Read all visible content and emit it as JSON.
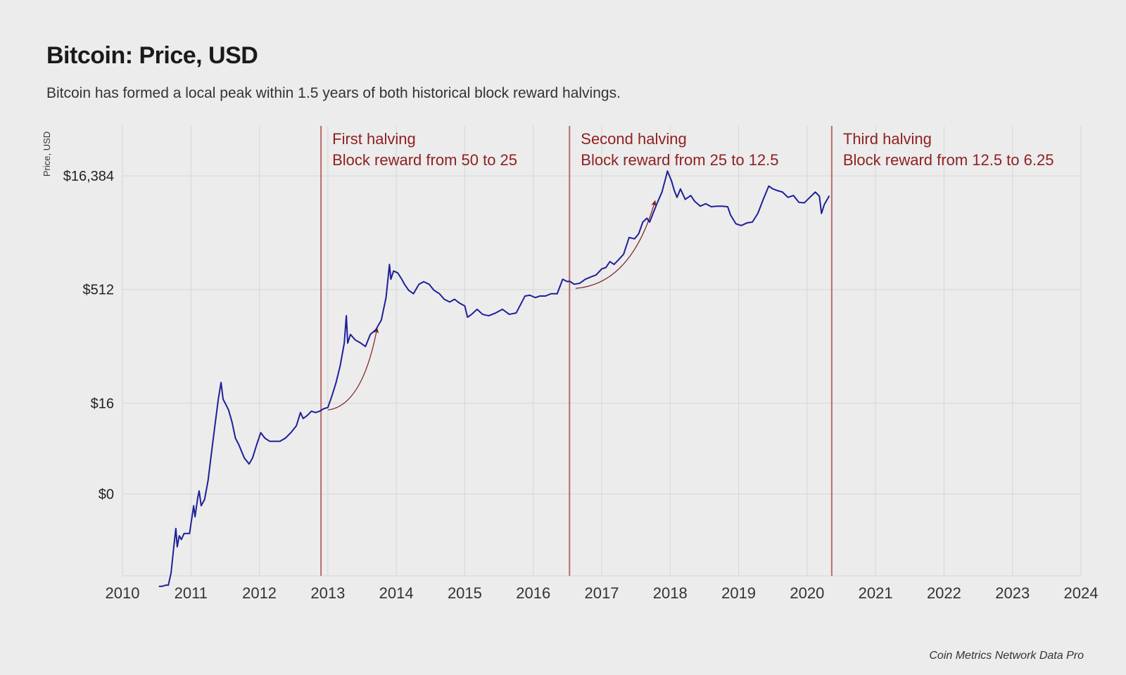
{
  "title": "Bitcoin: Price, USD",
  "subtitle": "Bitcoin has formed a local peak within 1.5 years of both historical block reward halvings.",
  "attribution": "Coin Metrics Network Data Pro",
  "chart": {
    "type": "line",
    "background_color": "#ececec",
    "grid_color": "#d6d6d6",
    "line_color": "#1f1f99",
    "line_width": 2,
    "title_fontsize": 34,
    "subtitle_fontsize": 21,
    "tick_fontsize": 22,
    "annotation_fontsize": 22,
    "annotation_color": "#8f2121",
    "halving_line_color": "#b96b6b",
    "arrow_color": "#7a1d1d",
    "ylabel": "Price, USD",
    "ylabel_fontsize": 13,
    "y_scale": "log2",
    "xlim": [
      2010,
      2024
    ],
    "x_ticks": [
      2010,
      2011,
      2012,
      2013,
      2014,
      2015,
      2016,
      2017,
      2018,
      2019,
      2020,
      2021,
      2022,
      2023,
      2024
    ],
    "y_ticks_log2": [
      {
        "exp": 0,
        "label": "$0"
      },
      {
        "exp": 4,
        "label": "$16"
      },
      {
        "exp": 9,
        "label": "$512"
      },
      {
        "exp": 14,
        "label": "$16,384"
      }
    ],
    "y_plot_range_log2": [
      -3.6,
      16.2
    ],
    "halvings": [
      {
        "x_year": 2012.9,
        "lines": [
          "First halving",
          "Block reward from 50 to 25"
        ]
      },
      {
        "x_year": 2016.53,
        "lines": [
          "Second halving",
          "Block reward from 25 to 12.5"
        ]
      },
      {
        "x_year": 2020.36,
        "lines": [
          "Third halving",
          "Block reward from 12.5 to 6.25"
        ]
      }
    ],
    "arrows": [
      {
        "start_year": 2013.0,
        "start_log2": 3.7,
        "end_year": 2013.72,
        "end_log2": 7.3
      },
      {
        "start_year": 2016.62,
        "start_log2": 9.05,
        "end_year": 2017.78,
        "end_log2": 12.9
      }
    ],
    "series": [
      {
        "t": 2010.54,
        "v": 0.06
      },
      {
        "t": 2010.58,
        "v": 0.06
      },
      {
        "t": 2010.63,
        "v": 0.062
      },
      {
        "t": 2010.67,
        "v": 0.062
      },
      {
        "t": 2010.71,
        "v": 0.09
      },
      {
        "t": 2010.75,
        "v": 0.2
      },
      {
        "t": 2010.78,
        "v": 0.35
      },
      {
        "t": 2010.8,
        "v": 0.2
      },
      {
        "t": 2010.83,
        "v": 0.28
      },
      {
        "t": 2010.86,
        "v": 0.25
      },
      {
        "t": 2010.9,
        "v": 0.3
      },
      {
        "t": 2010.94,
        "v": 0.3
      },
      {
        "t": 2010.98,
        "v": 0.3
      },
      {
        "t": 2011.04,
        "v": 0.7
      },
      {
        "t": 2011.06,
        "v": 0.5
      },
      {
        "t": 2011.1,
        "v": 0.9
      },
      {
        "t": 2011.12,
        "v": 1.1
      },
      {
        "t": 2011.15,
        "v": 0.7
      },
      {
        "t": 2011.2,
        "v": 0.85
      },
      {
        "t": 2011.25,
        "v": 1.5
      },
      {
        "t": 2011.3,
        "v": 3.5
      },
      {
        "t": 2011.35,
        "v": 8.0
      },
      {
        "t": 2011.4,
        "v": 18.0
      },
      {
        "t": 2011.44,
        "v": 30.0
      },
      {
        "t": 2011.47,
        "v": 18.0
      },
      {
        "t": 2011.5,
        "v": 16.0
      },
      {
        "t": 2011.55,
        "v": 13.0
      },
      {
        "t": 2011.6,
        "v": 9.0
      },
      {
        "t": 2011.65,
        "v": 5.5
      },
      {
        "t": 2011.7,
        "v": 4.5
      },
      {
        "t": 2011.78,
        "v": 3.0
      },
      {
        "t": 2011.85,
        "v": 2.5
      },
      {
        "t": 2011.9,
        "v": 3.0
      },
      {
        "t": 2011.96,
        "v": 4.5
      },
      {
        "t": 2012.02,
        "v": 6.5
      },
      {
        "t": 2012.08,
        "v": 5.5
      },
      {
        "t": 2012.15,
        "v": 5.0
      },
      {
        "t": 2012.22,
        "v": 5.0
      },
      {
        "t": 2012.3,
        "v": 5.0
      },
      {
        "t": 2012.38,
        "v": 5.5
      },
      {
        "t": 2012.46,
        "v": 6.5
      },
      {
        "t": 2012.54,
        "v": 8.0
      },
      {
        "t": 2012.6,
        "v": 12.0
      },
      {
        "t": 2012.64,
        "v": 10.0
      },
      {
        "t": 2012.7,
        "v": 11.0
      },
      {
        "t": 2012.76,
        "v": 12.5
      },
      {
        "t": 2012.82,
        "v": 12.0
      },
      {
        "t": 2012.88,
        "v": 12.5
      },
      {
        "t": 2012.94,
        "v": 13.5
      },
      {
        "t": 2013.0,
        "v": 14.0
      },
      {
        "t": 2013.06,
        "v": 20.0
      },
      {
        "t": 2013.12,
        "v": 30.0
      },
      {
        "t": 2013.18,
        "v": 50.0
      },
      {
        "t": 2013.24,
        "v": 100.0
      },
      {
        "t": 2013.27,
        "v": 230.0
      },
      {
        "t": 2013.29,
        "v": 100.0
      },
      {
        "t": 2013.33,
        "v": 130.0
      },
      {
        "t": 2013.4,
        "v": 110.0
      },
      {
        "t": 2013.48,
        "v": 100.0
      },
      {
        "t": 2013.55,
        "v": 90.0
      },
      {
        "t": 2013.62,
        "v": 130.0
      },
      {
        "t": 2013.7,
        "v": 150.0
      },
      {
        "t": 2013.78,
        "v": 200.0
      },
      {
        "t": 2013.85,
        "v": 400.0
      },
      {
        "t": 2013.9,
        "v": 1100
      },
      {
        "t": 2013.92,
        "v": 700.0
      },
      {
        "t": 2013.96,
        "v": 900.0
      },
      {
        "t": 2014.02,
        "v": 850.0
      },
      {
        "t": 2014.08,
        "v": 700.0
      },
      {
        "t": 2014.12,
        "v": 600.0
      },
      {
        "t": 2014.18,
        "v": 500.0
      },
      {
        "t": 2014.25,
        "v": 450.0
      },
      {
        "t": 2014.33,
        "v": 600.0
      },
      {
        "t": 2014.4,
        "v": 650.0
      },
      {
        "t": 2014.48,
        "v": 600.0
      },
      {
        "t": 2014.55,
        "v": 500.0
      },
      {
        "t": 2014.63,
        "v": 450.0
      },
      {
        "t": 2014.7,
        "v": 380.0
      },
      {
        "t": 2014.78,
        "v": 350.0
      },
      {
        "t": 2014.85,
        "v": 380.0
      },
      {
        "t": 2014.92,
        "v": 340.0
      },
      {
        "t": 2015.0,
        "v": 310.0
      },
      {
        "t": 2015.04,
        "v": 220.0
      },
      {
        "t": 2015.1,
        "v": 240.0
      },
      {
        "t": 2015.18,
        "v": 280.0
      },
      {
        "t": 2015.26,
        "v": 240.0
      },
      {
        "t": 2015.35,
        "v": 230.0
      },
      {
        "t": 2015.45,
        "v": 250.0
      },
      {
        "t": 2015.55,
        "v": 280.0
      },
      {
        "t": 2015.65,
        "v": 240.0
      },
      {
        "t": 2015.75,
        "v": 250.0
      },
      {
        "t": 2015.82,
        "v": 330.0
      },
      {
        "t": 2015.88,
        "v": 420.0
      },
      {
        "t": 2015.95,
        "v": 430.0
      },
      {
        "t": 2016.03,
        "v": 400.0
      },
      {
        "t": 2016.1,
        "v": 420.0
      },
      {
        "t": 2016.18,
        "v": 420.0
      },
      {
        "t": 2016.26,
        "v": 450.0
      },
      {
        "t": 2016.35,
        "v": 450.0
      },
      {
        "t": 2016.43,
        "v": 700.0
      },
      {
        "t": 2016.5,
        "v": 650.0
      },
      {
        "t": 2016.53,
        "v": 660.0
      },
      {
        "t": 2016.6,
        "v": 600.0
      },
      {
        "t": 2016.68,
        "v": 620.0
      },
      {
        "t": 2016.76,
        "v": 700.0
      },
      {
        "t": 2016.84,
        "v": 750.0
      },
      {
        "t": 2016.92,
        "v": 800.0
      },
      {
        "t": 2017.0,
        "v": 960.0
      },
      {
        "t": 2017.06,
        "v": 1000
      },
      {
        "t": 2017.12,
        "v": 1200
      },
      {
        "t": 2017.18,
        "v": 1100
      },
      {
        "t": 2017.24,
        "v": 1250
      },
      {
        "t": 2017.32,
        "v": 1500
      },
      {
        "t": 2017.4,
        "v": 2500
      },
      {
        "t": 2017.48,
        "v": 2400
      },
      {
        "t": 2017.54,
        "v": 2800
      },
      {
        "t": 2017.6,
        "v": 4000
      },
      {
        "t": 2017.66,
        "v": 4500
      },
      {
        "t": 2017.7,
        "v": 4000
      },
      {
        "t": 2017.76,
        "v": 5500
      },
      {
        "t": 2017.82,
        "v": 7500
      },
      {
        "t": 2017.88,
        "v": 10000
      },
      {
        "t": 2017.94,
        "v": 16000
      },
      {
        "t": 2017.96,
        "v": 19000
      },
      {
        "t": 2018.02,
        "v": 14000
      },
      {
        "t": 2018.06,
        "v": 10500
      },
      {
        "t": 2018.1,
        "v": 8500
      },
      {
        "t": 2018.15,
        "v": 11000
      },
      {
        "t": 2018.22,
        "v": 8000
      },
      {
        "t": 2018.3,
        "v": 9000
      },
      {
        "t": 2018.36,
        "v": 7500
      },
      {
        "t": 2018.44,
        "v": 6500
      },
      {
        "t": 2018.52,
        "v": 7000
      },
      {
        "t": 2018.6,
        "v": 6400
      },
      {
        "t": 2018.68,
        "v": 6500
      },
      {
        "t": 2018.76,
        "v": 6500
      },
      {
        "t": 2018.84,
        "v": 6400
      },
      {
        "t": 2018.88,
        "v": 5000
      },
      {
        "t": 2018.96,
        "v": 3800
      },
      {
        "t": 2019.04,
        "v": 3600
      },
      {
        "t": 2019.12,
        "v": 3900
      },
      {
        "t": 2019.2,
        "v": 4000
      },
      {
        "t": 2019.28,
        "v": 5200
      },
      {
        "t": 2019.36,
        "v": 8000
      },
      {
        "t": 2019.44,
        "v": 12000
      },
      {
        "t": 2019.5,
        "v": 11000
      },
      {
        "t": 2019.56,
        "v": 10500
      },
      {
        "t": 2019.64,
        "v": 10000
      },
      {
        "t": 2019.72,
        "v": 8500
      },
      {
        "t": 2019.8,
        "v": 9000
      },
      {
        "t": 2019.88,
        "v": 7300
      },
      {
        "t": 2019.96,
        "v": 7200
      },
      {
        "t": 2020.04,
        "v": 8500
      },
      {
        "t": 2020.12,
        "v": 10000
      },
      {
        "t": 2020.18,
        "v": 8800
      },
      {
        "t": 2020.21,
        "v": 5200
      },
      {
        "t": 2020.25,
        "v": 6800
      },
      {
        "t": 2020.32,
        "v": 8800
      }
    ]
  }
}
